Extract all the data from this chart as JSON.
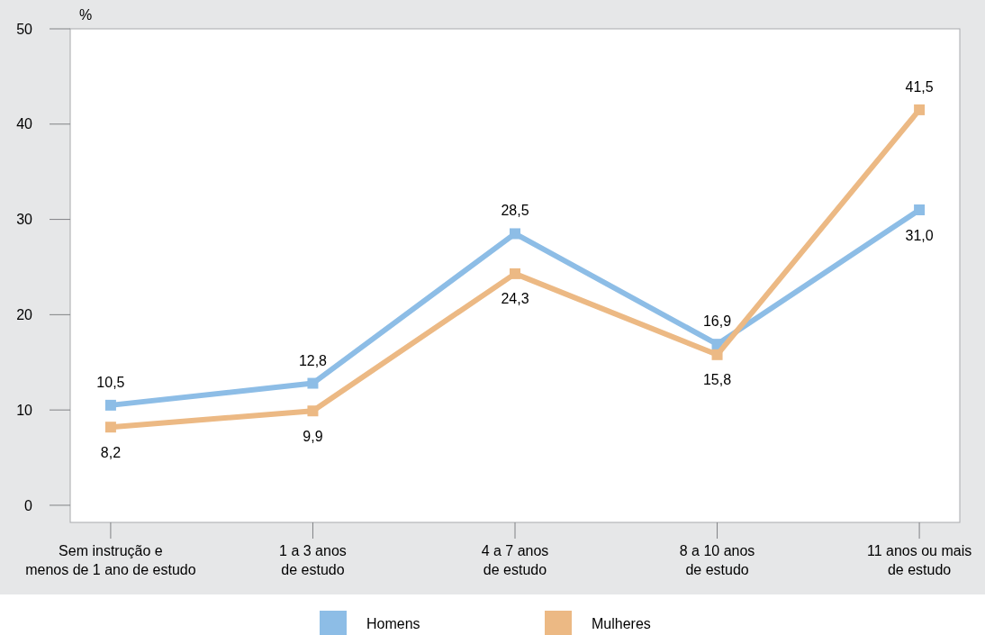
{
  "chart_data": {
    "type": "line",
    "ylabel": "%",
    "categories": [
      "Sem instrução e\nmenos de 1 ano de estudo",
      "1 a 3 anos\nde estudo",
      "4 a 7 anos\nde estudo",
      "8 a 10 anos\nde estudo",
      "11 anos ou mais\nde estudo"
    ],
    "series": [
      {
        "name": "Homens",
        "color": "#8dbde6",
        "values": [
          10.5,
          12.8,
          28.5,
          16.9,
          31.0
        ],
        "value_labels": [
          "10,5",
          "12,8",
          "28,5",
          "16,9",
          "31,0"
        ]
      },
      {
        "name": "Mulheres",
        "color": "#ecb984",
        "values": [
          8.2,
          9.9,
          24.3,
          15.8,
          41.5
        ],
        "value_labels": [
          "8,2",
          "9,9",
          "24,3",
          "15,8",
          "41,5"
        ]
      }
    ],
    "ylim": [
      -1.8,
      50
    ],
    "yticks": [
      0,
      10,
      20,
      30,
      40,
      50
    ],
    "grid": false,
    "legend": "bottom",
    "marker": "square",
    "line_style": "solid"
  }
}
